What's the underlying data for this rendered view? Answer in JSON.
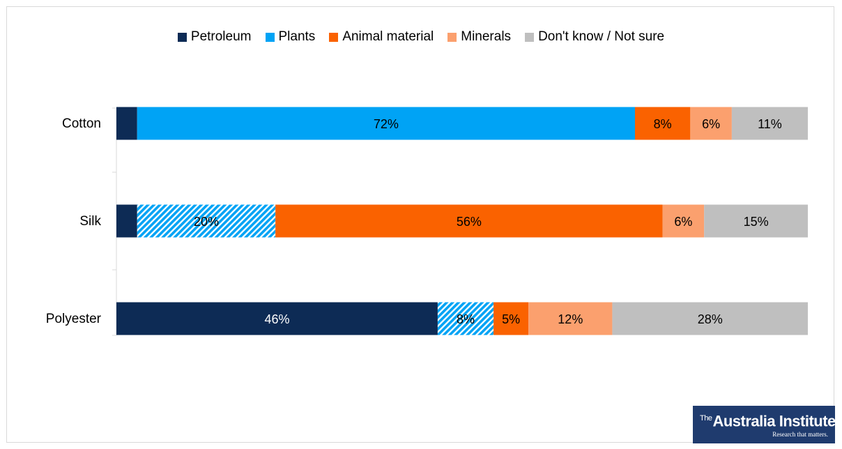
{
  "legend": [
    {
      "label": "Petroleum",
      "color": "#0d2b55"
    },
    {
      "label": "Plants",
      "color": "#00a3f5"
    },
    {
      "label": "Animal material",
      "color": "#fa6200"
    },
    {
      "label": "Minerals",
      "color": "#fba06e"
    },
    {
      "label": "Don't know / Not sure",
      "color": "#bfbfbf"
    }
  ],
  "logo": {
    "the": "The",
    "name": "Australia Institute",
    "tagline": "Research that matters."
  },
  "chart_data": {
    "type": "bar",
    "orientation": "horizontal",
    "stacked": true,
    "categories": [
      "Cotton",
      "Silk",
      "Polyester"
    ],
    "series": [
      {
        "name": "Petroleum",
        "values": [
          3,
          3,
          46
        ],
        "color": "#0d2b55"
      },
      {
        "name": "Plants",
        "values": [
          72,
          20,
          8
        ],
        "color": "#00a3f5"
      },
      {
        "name": "Animal material",
        "values": [
          8,
          56,
          5
        ],
        "color": "#fa6200"
      },
      {
        "name": "Minerals",
        "values": [
          6,
          6,
          12
        ],
        "color": "#fba06e"
      },
      {
        "name": "Don't know / Not sure",
        "values": [
          11,
          15,
          28
        ],
        "color": "#bfbfbf"
      }
    ],
    "data_labels": [
      [
        "",
        "72%",
        "8%",
        "6%",
        "11%"
      ],
      [
        "",
        "20%",
        "56%",
        "6%",
        "15%"
      ],
      [
        "46%",
        "8%",
        "5%",
        "12%",
        "28%"
      ]
    ],
    "highlighted": [
      [
        1,
        1
      ],
      [
        2,
        1
      ],
      [
        3,
        0
      ]
    ],
    "xlim": [
      0,
      100
    ],
    "legend_position": "top",
    "grid": false
  }
}
